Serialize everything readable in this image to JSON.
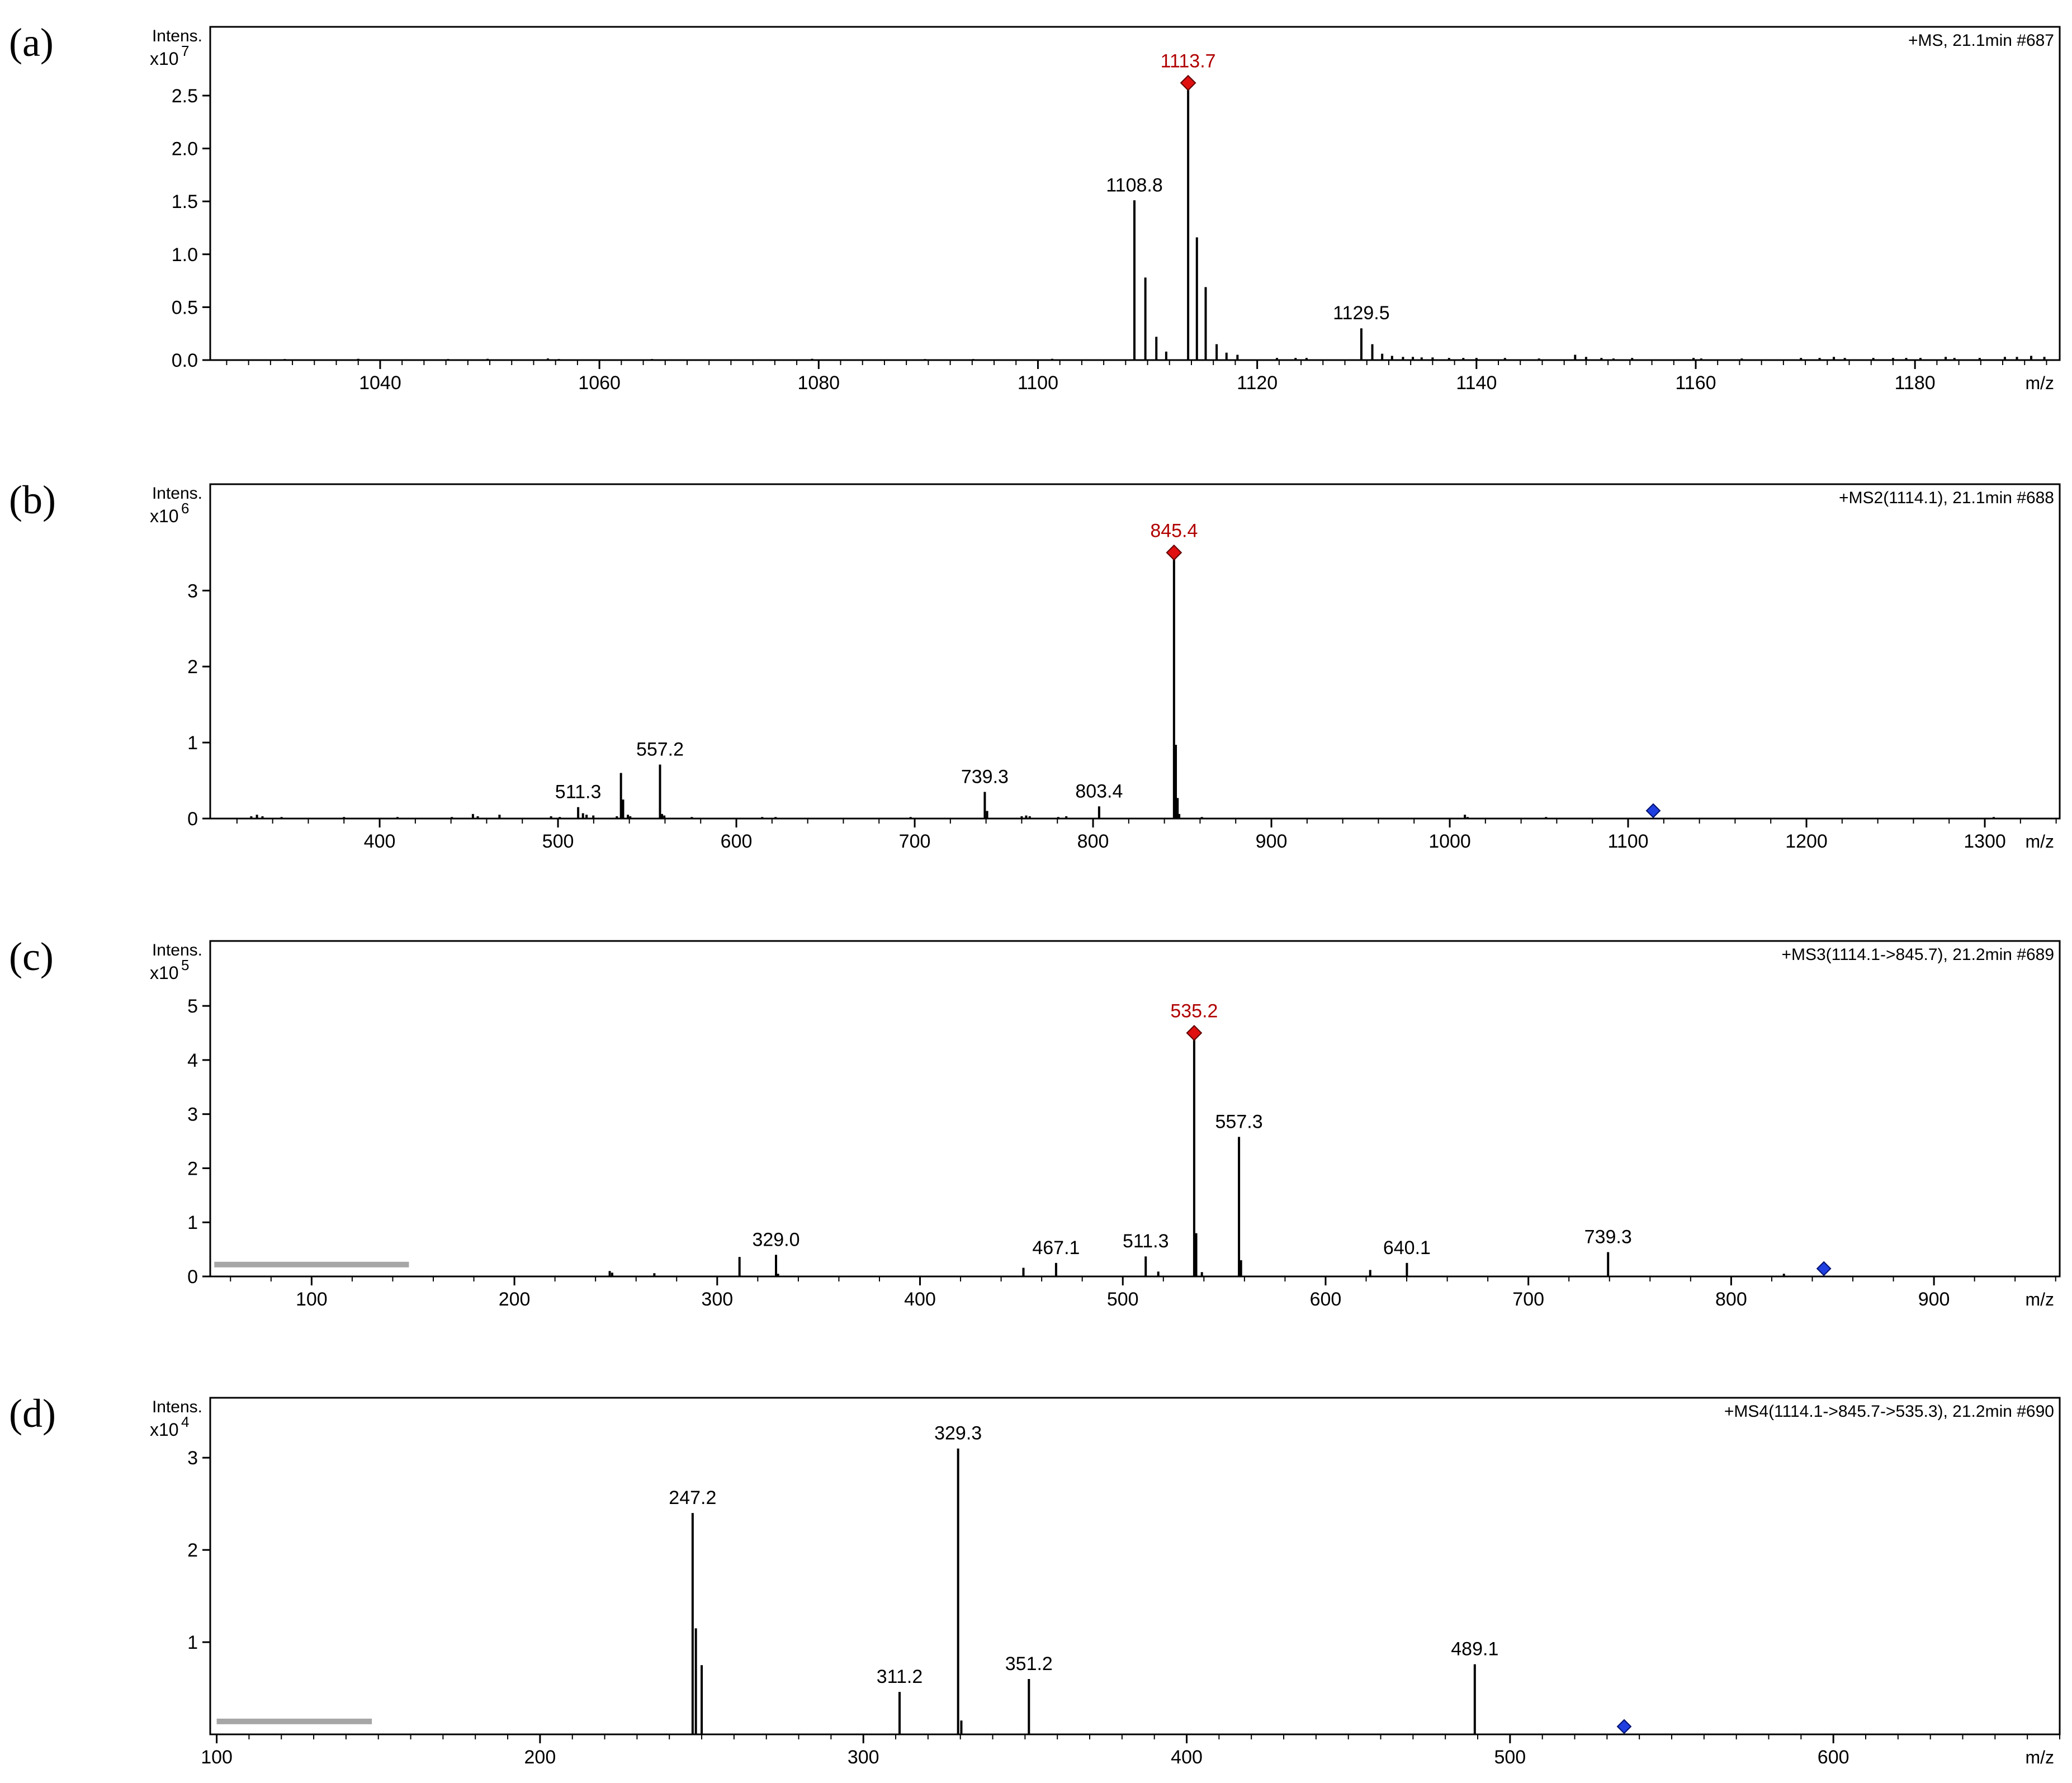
{
  "chart_data": [
    {
      "type": "bar",
      "panel_label": "(a)",
      "header": "+MS, 21.1min #687",
      "ylabel": "Intens.",
      "yscale_label": "x10",
      "yscale_exp": "7",
      "xlabel": "m/z",
      "xlim": [
        1024.5,
        1193.2
      ],
      "ylim": [
        0,
        3.15
      ],
      "xticks": [
        1040,
        1060,
        1080,
        1100,
        1120,
        1140,
        1160,
        1180
      ],
      "xminor_step": 2,
      "yticks": [
        0.0,
        0.5,
        1.0,
        1.5,
        2.0,
        2.5
      ],
      "ytick_labels": [
        "0.0",
        "0.5",
        "1.0",
        "1.5",
        "2.0",
        "2.5"
      ],
      "label_color": "#000000",
      "peaks": [
        {
          "x": 1031.3,
          "y": 0.01
        },
        {
          "x": 1034.7,
          "y": 0.008
        },
        {
          "x": 1038.0,
          "y": 0.012
        },
        {
          "x": 1043.1,
          "y": 0.008
        },
        {
          "x": 1046.2,
          "y": 0.01
        },
        {
          "x": 1049.8,
          "y": 0.012
        },
        {
          "x": 1055.3,
          "y": 0.015
        },
        {
          "x": 1056.3,
          "y": 0.01
        },
        {
          "x": 1064.8,
          "y": 0.01
        },
        {
          "x": 1070.8,
          "y": 0.008
        },
        {
          "x": 1079.4,
          "y": 0.012
        },
        {
          "x": 1089.7,
          "y": 0.01
        },
        {
          "x": 1094.1,
          "y": 0.01
        },
        {
          "x": 1101.3,
          "y": 0.012
        },
        {
          "x": 1108.8,
          "y": 1.51,
          "label": "1108.8"
        },
        {
          "x": 1109.8,
          "y": 0.78
        },
        {
          "x": 1110.8,
          "y": 0.22
        },
        {
          "x": 1111.7,
          "y": 0.08
        },
        {
          "x": 1113.7,
          "y": 2.62,
          "label": "1113.7",
          "marker": "red"
        },
        {
          "x": 1114.5,
          "y": 1.16
        },
        {
          "x": 1115.3,
          "y": 0.69
        },
        {
          "x": 1116.3,
          "y": 0.15
        },
        {
          "x": 1117.2,
          "y": 0.07
        },
        {
          "x": 1118.2,
          "y": 0.05
        },
        {
          "x": 1121.8,
          "y": 0.02
        },
        {
          "x": 1123.5,
          "y": 0.02
        },
        {
          "x": 1124.5,
          "y": 0.02
        },
        {
          "x": 1129.5,
          "y": 0.3,
          "label": "1129.5"
        },
        {
          "x": 1130.5,
          "y": 0.15
        },
        {
          "x": 1131.4,
          "y": 0.06
        },
        {
          "x": 1132.3,
          "y": 0.04
        },
        {
          "x": 1133.3,
          "y": 0.03
        },
        {
          "x": 1134.2,
          "y": 0.03
        },
        {
          "x": 1135.0,
          "y": 0.025
        },
        {
          "x": 1136.0,
          "y": 0.025
        },
        {
          "x": 1137.5,
          "y": 0.02
        },
        {
          "x": 1138.8,
          "y": 0.02
        },
        {
          "x": 1140.0,
          "y": 0.02
        },
        {
          "x": 1142.6,
          "y": 0.02
        },
        {
          "x": 1145.7,
          "y": 0.015
        },
        {
          "x": 1149.0,
          "y": 0.05
        },
        {
          "x": 1150.0,
          "y": 0.03
        },
        {
          "x": 1151.4,
          "y": 0.02
        },
        {
          "x": 1152.5,
          "y": 0.015
        },
        {
          "x": 1154.2,
          "y": 0.02
        },
        {
          "x": 1159.8,
          "y": 0.02
        },
        {
          "x": 1160.5,
          "y": 0.015
        },
        {
          "x": 1164.2,
          "y": 0.015
        },
        {
          "x": 1169.6,
          "y": 0.02
        },
        {
          "x": 1171.3,
          "y": 0.02
        },
        {
          "x": 1172.6,
          "y": 0.03
        },
        {
          "x": 1173.6,
          "y": 0.02
        },
        {
          "x": 1176.2,
          "y": 0.02
        },
        {
          "x": 1178.0,
          "y": 0.02
        },
        {
          "x": 1179.2,
          "y": 0.02
        },
        {
          "x": 1180.5,
          "y": 0.02
        },
        {
          "x": 1182.8,
          "y": 0.03
        },
        {
          "x": 1183.6,
          "y": 0.02
        },
        {
          "x": 1185.9,
          "y": 0.02
        },
        {
          "x": 1188.2,
          "y": 0.03
        },
        {
          "x": 1189.3,
          "y": 0.03
        },
        {
          "x": 1190.6,
          "y": 0.04
        },
        {
          "x": 1191.8,
          "y": 0.03
        }
      ]
    },
    {
      "type": "bar",
      "panel_label": "(b)",
      "header": "+MS2(1114.1), 21.1min #688",
      "ylabel": "Intens.",
      "yscale_label": "x10",
      "yscale_exp": "6",
      "xlabel": "m/z",
      "xlim": [
        305,
        1342
      ],
      "ylim": [
        0,
        4.4
      ],
      "xticks": [
        400,
        500,
        600,
        700,
        800,
        900,
        1000,
        1100,
        1200,
        1300
      ],
      "xminor_step": 20,
      "yticks": [
        0,
        1,
        2,
        3
      ],
      "ytick_labels": [
        "0",
        "1",
        "2",
        "3"
      ],
      "label_color": "#000000",
      "precursor": {
        "x": 1114.1,
        "marker": "blue"
      },
      "peaks": [
        {
          "x": 328.0,
          "y": 0.03
        },
        {
          "x": 331.2,
          "y": 0.05
        },
        {
          "x": 334.3,
          "y": 0.03
        },
        {
          "x": 345.0,
          "y": 0.02
        },
        {
          "x": 380.0,
          "y": 0.02
        },
        {
          "x": 410.0,
          "y": 0.02
        },
        {
          "x": 440.5,
          "y": 0.02
        },
        {
          "x": 452.3,
          "y": 0.06
        },
        {
          "x": 455.0,
          "y": 0.03
        },
        {
          "x": 467.2,
          "y": 0.05
        },
        {
          "x": 496.1,
          "y": 0.03
        },
        {
          "x": 501.0,
          "y": 0.02
        },
        {
          "x": 511.3,
          "y": 0.15,
          "label": "511.3"
        },
        {
          "x": 514.0,
          "y": 0.07
        },
        {
          "x": 516.0,
          "y": 0.05
        },
        {
          "x": 519.8,
          "y": 0.04
        },
        {
          "x": 533.0,
          "y": 0.03
        },
        {
          "x": 535.3,
          "y": 0.6
        },
        {
          "x": 536.5,
          "y": 0.25
        },
        {
          "x": 539.2,
          "y": 0.05
        },
        {
          "x": 540.5,
          "y": 0.03
        },
        {
          "x": 557.2,
          "y": 0.71,
          "label": "557.2"
        },
        {
          "x": 558.3,
          "y": 0.06
        },
        {
          "x": 559.6,
          "y": 0.04
        },
        {
          "x": 575.0,
          "y": 0.02
        },
        {
          "x": 614.5,
          "y": 0.02
        },
        {
          "x": 622.0,
          "y": 0.02
        },
        {
          "x": 697.7,
          "y": 0.02
        },
        {
          "x": 739.3,
          "y": 0.35,
          "label": "739.3"
        },
        {
          "x": 740.6,
          "y": 0.1
        },
        {
          "x": 760.0,
          "y": 0.03
        },
        {
          "x": 762.5,
          "y": 0.04
        },
        {
          "x": 764.5,
          "y": 0.03
        },
        {
          "x": 780.5,
          "y": 0.02
        },
        {
          "x": 785.0,
          "y": 0.03
        },
        {
          "x": 803.4,
          "y": 0.16,
          "label": "803.4"
        },
        {
          "x": 845.4,
          "y": 3.5,
          "label": "845.4",
          "marker": "red"
        },
        {
          "x": 846.4,
          "y": 0.97
        },
        {
          "x": 847.4,
          "y": 0.27
        },
        {
          "x": 848.3,
          "y": 0.06
        },
        {
          "x": 861.0,
          "y": 0.02
        },
        {
          "x": 1008.5,
          "y": 0.05
        },
        {
          "x": 1010.0,
          "y": 0.02
        },
        {
          "x": 1054.0,
          "y": 0.02
        },
        {
          "x": 1305.0,
          "y": 0.02
        }
      ]
    },
    {
      "type": "bar",
      "panel_label": "(c)",
      "header": "+MS3(1114.1->845.7), 21.2min #689",
      "ylabel": "Intens.",
      "yscale_label": "x10",
      "yscale_exp": "5",
      "xlabel": "m/z",
      "xlim": [
        50,
        962
      ],
      "ylim": [
        0,
        6.2
      ],
      "xticks": [
        100,
        200,
        300,
        400,
        500,
        600,
        700,
        800,
        900
      ],
      "xminor_step": 20,
      "yticks": [
        0,
        1,
        2,
        3,
        4,
        5
      ],
      "ytick_labels": [
        "0",
        "1",
        "2",
        "3",
        "4",
        "5"
      ],
      "label_color": "#000000",
      "precursor": {
        "x": 845.7,
        "marker": "blue"
      },
      "baseline_bar": {
        "x0": 52,
        "x1": 148,
        "y": 0.22
      },
      "peaks": [
        {
          "x": 247.0,
          "y": 0.1
        },
        {
          "x": 248.2,
          "y": 0.07
        },
        {
          "x": 269.0,
          "y": 0.06
        },
        {
          "x": 311.0,
          "y": 0.36
        },
        {
          "x": 329.0,
          "y": 0.4,
          "label": "329.0"
        },
        {
          "x": 330.0,
          "y": 0.05
        },
        {
          "x": 451.0,
          "y": 0.16
        },
        {
          "x": 467.1,
          "y": 0.25,
          "label": "467.1"
        },
        {
          "x": 511.3,
          "y": 0.37,
          "label": "511.3"
        },
        {
          "x": 517.5,
          "y": 0.09
        },
        {
          "x": 535.2,
          "y": 4.5,
          "label": "535.2",
          "marker": "red"
        },
        {
          "x": 536.2,
          "y": 0.8
        },
        {
          "x": 539.0,
          "y": 0.08
        },
        {
          "x": 557.3,
          "y": 2.58,
          "label": "557.3"
        },
        {
          "x": 558.3,
          "y": 0.3
        },
        {
          "x": 622.0,
          "y": 0.12
        },
        {
          "x": 640.1,
          "y": 0.25,
          "label": "640.1"
        },
        {
          "x": 739.3,
          "y": 0.45,
          "label": "739.3"
        },
        {
          "x": 826.0,
          "y": 0.05
        }
      ]
    },
    {
      "type": "bar",
      "panel_label": "(d)",
      "header": "+MS4(1114.1->845.7->535.3), 21.2min #690",
      "ylabel": "Intens.",
      "yscale_label": "x10",
      "yscale_exp": "4",
      "xlabel": "m/z",
      "xlim": [
        98,
        670
      ],
      "ylim": [
        0,
        3.65
      ],
      "xticks": [
        100,
        200,
        300,
        400,
        500,
        600
      ],
      "xminor_step": 10,
      "yticks": [
        1,
        2,
        3
      ],
      "ytick_labels": [
        "1",
        "2",
        "3"
      ],
      "label_color": "#000000",
      "precursor": {
        "x": 535.3,
        "marker": "blue"
      },
      "baseline_bar": {
        "x0": 100,
        "x1": 148,
        "y": 0.14
      },
      "peaks": [
        {
          "x": 247.2,
          "y": 2.4,
          "label": "247.2"
        },
        {
          "x": 248.2,
          "y": 1.15
        },
        {
          "x": 250.0,
          "y": 0.75
        },
        {
          "x": 311.2,
          "y": 0.46,
          "label": "311.2"
        },
        {
          "x": 329.3,
          "y": 3.1,
          "label": "329.3"
        },
        {
          "x": 330.3,
          "y": 0.15
        },
        {
          "x": 351.2,
          "y": 0.6,
          "label": "351.2"
        },
        {
          "x": 489.1,
          "y": 0.76,
          "label": "489.1"
        }
      ]
    }
  ]
}
